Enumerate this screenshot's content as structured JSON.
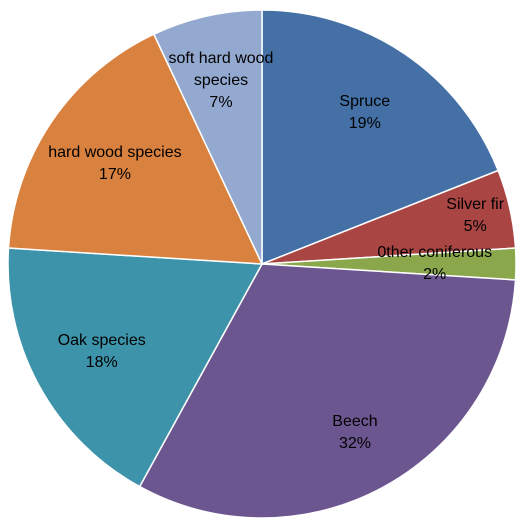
{
  "chart_data": {
    "type": "pie",
    "categories": [
      "Spruce",
      "Silver fir",
      "0ther coniferous",
      "Beech",
      "Oak species",
      "hard wood species",
      "soft hard wood species"
    ],
    "values": [
      19,
      5,
      2,
      32,
      18,
      17,
      7
    ],
    "value_labels": [
      "19%",
      "5%",
      "2%",
      "32%",
      "18%",
      "17%",
      "7%"
    ],
    "colors": [
      "#4470a6",
      "#a94543",
      "#8aa84b",
      "#6c5690",
      "#3d93a9",
      "#d9813e",
      "#93a9cf"
    ]
  }
}
